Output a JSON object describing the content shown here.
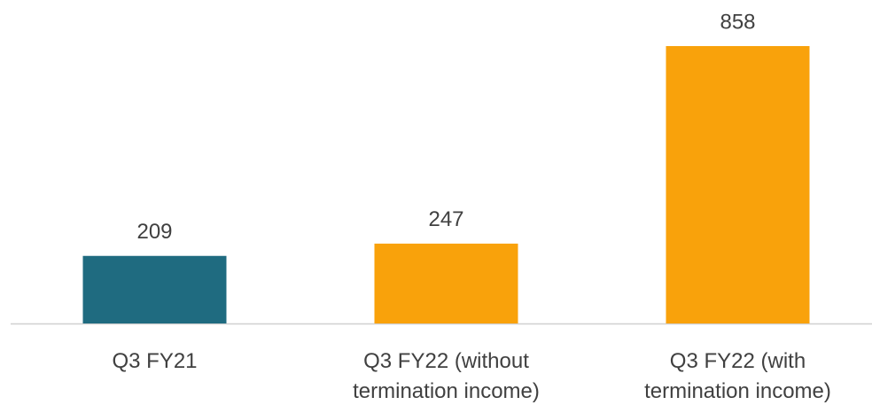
{
  "chart_data": {
    "type": "bar",
    "categories": [
      "Q3 FY21",
      "Q3 FY22 (without termination income)",
      "Q3 FY22 (with termination income)"
    ],
    "values": [
      209,
      247,
      858
    ],
    "colors": [
      "#1f6b80",
      "#f9a20b",
      "#f9a20b"
    ]
  }
}
